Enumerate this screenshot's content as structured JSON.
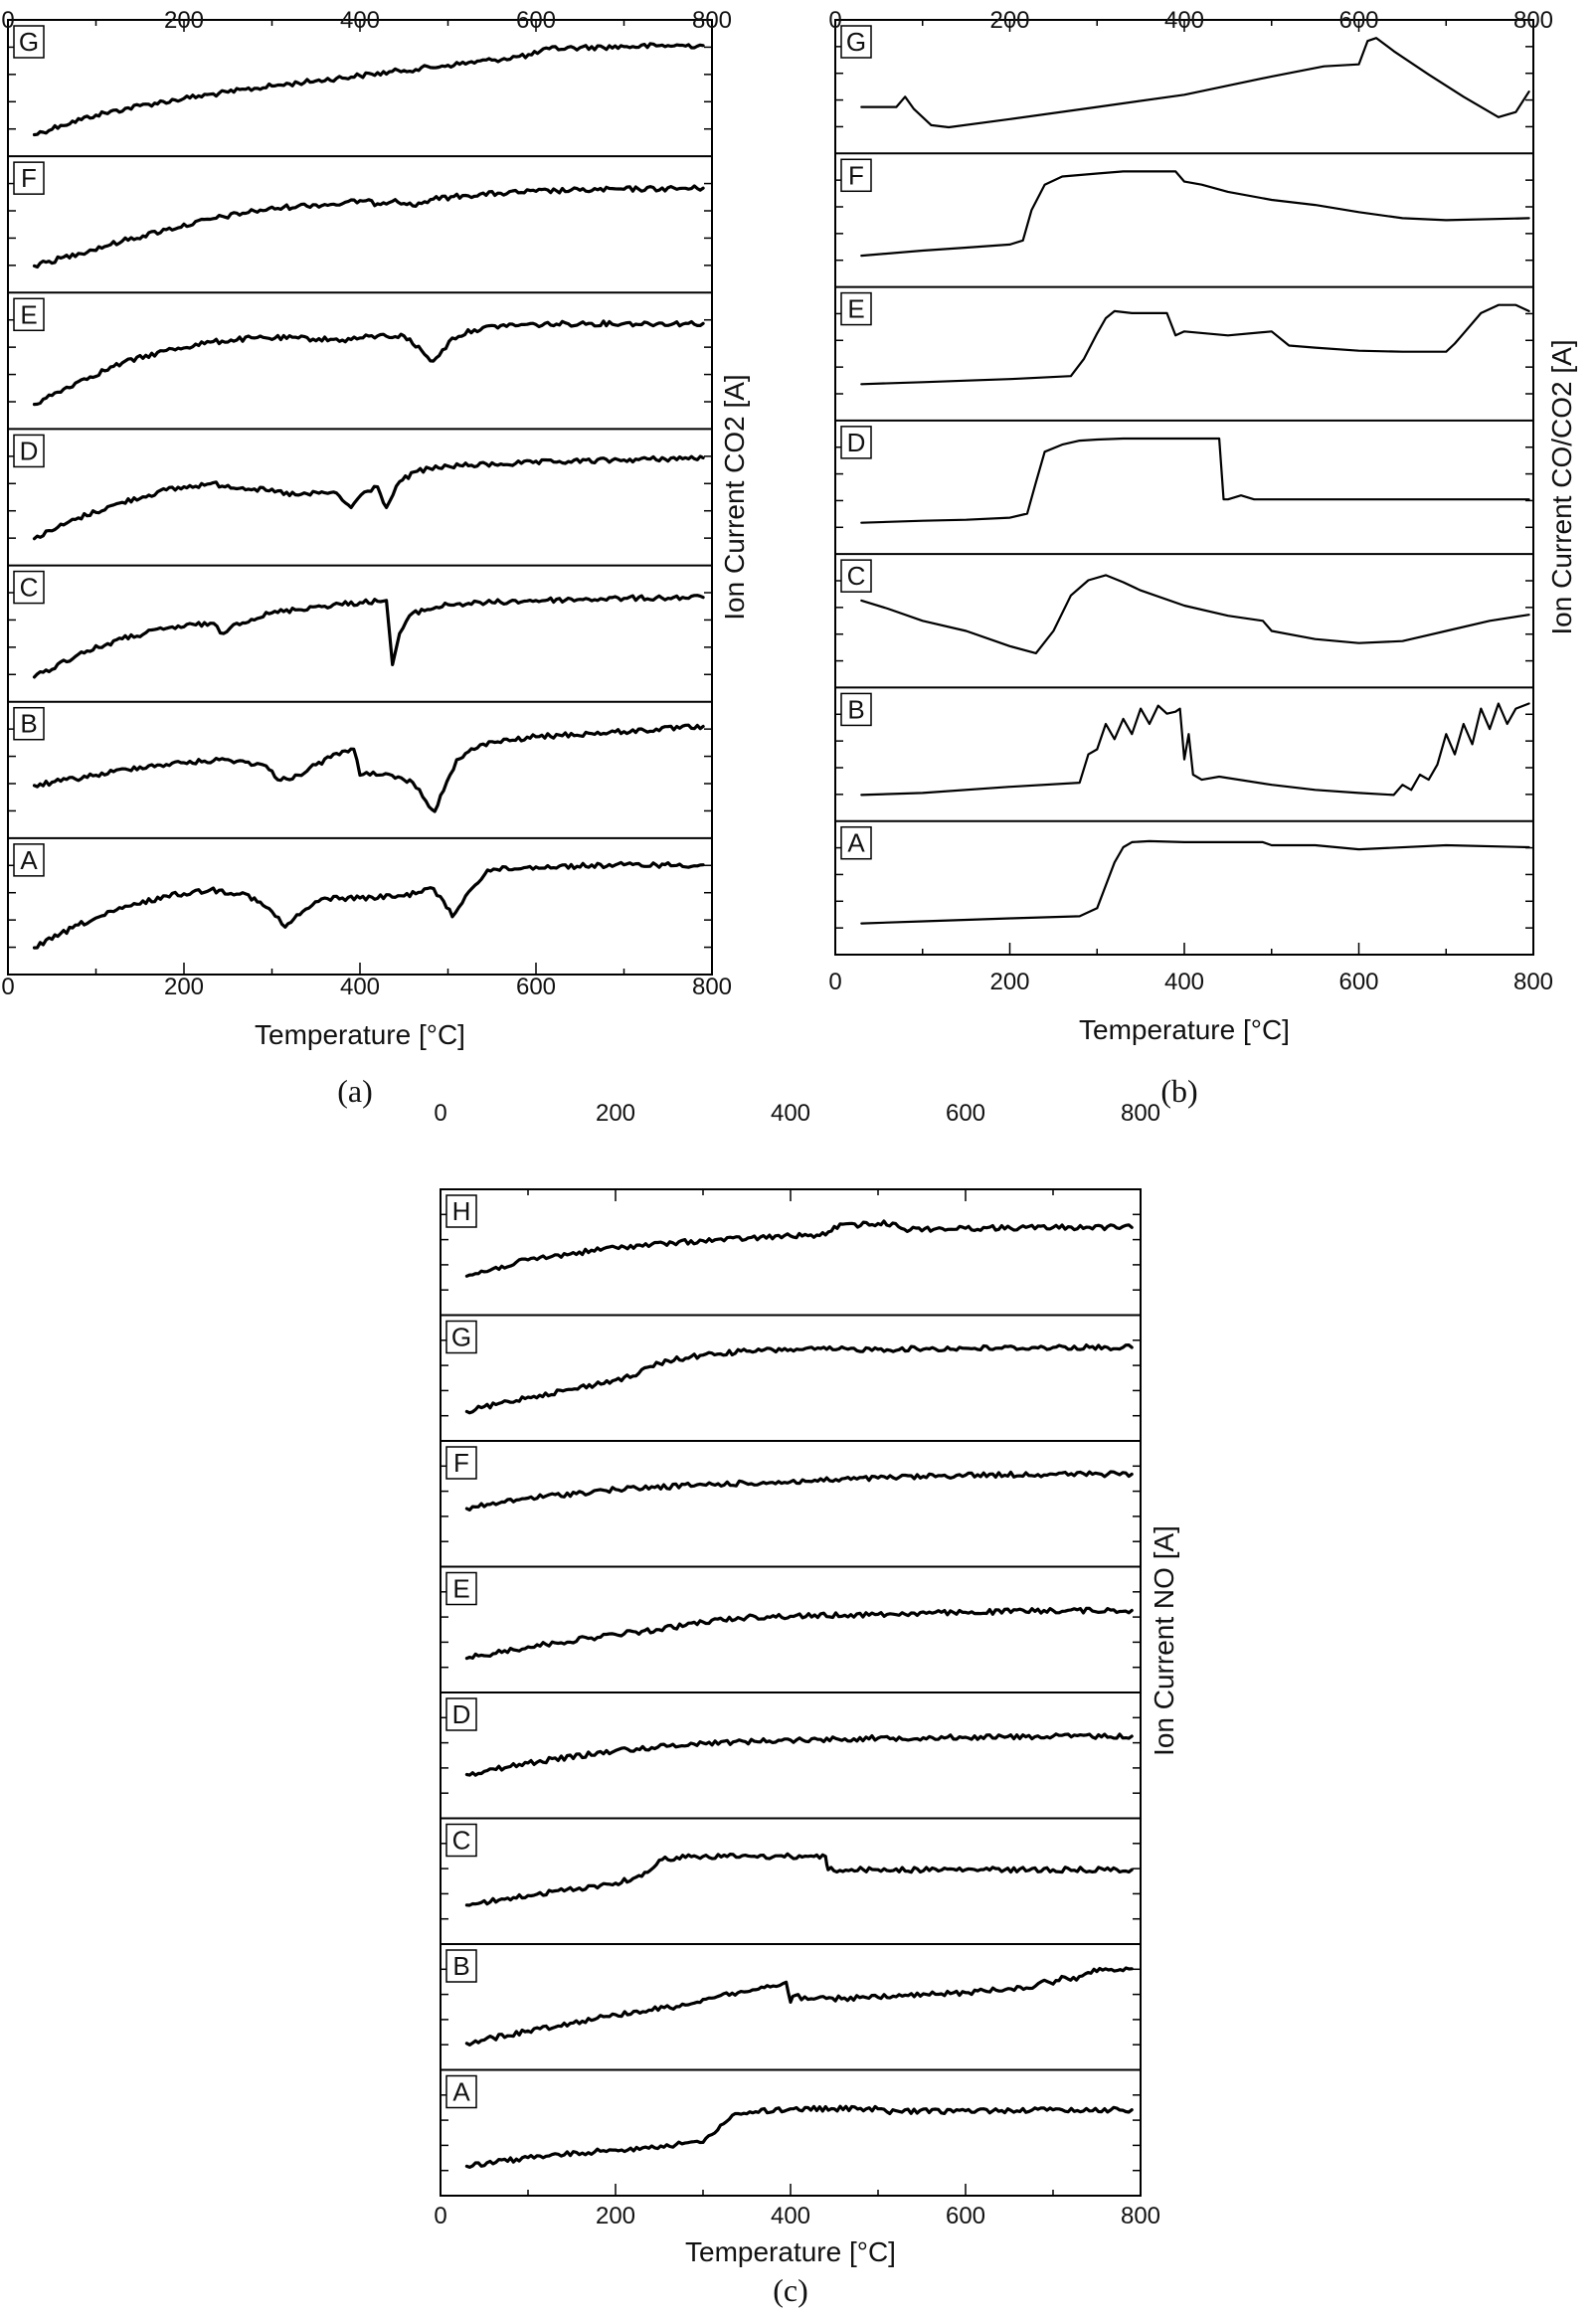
{
  "chart_data": [
    {
      "id": "a",
      "type": "line",
      "caption": "(a)",
      "xlabel": "Temperature [°C]",
      "ylabel": "Ion Current CO2 [A]",
      "xlim": [
        0,
        800
      ],
      "xticks": [
        "0",
        "200",
        "400",
        "600",
        "800"
      ],
      "style": "noisy",
      "series": [
        {
          "name": "G",
          "x": [
            30,
            60,
            100,
            150,
            200,
            250,
            300,
            350,
            400,
            450,
            500,
            550,
            595,
            615,
            650,
            700,
            750,
            790
          ],
          "values": [
            0.05,
            0.14,
            0.24,
            0.33,
            0.4,
            0.46,
            0.52,
            0.57,
            0.62,
            0.67,
            0.72,
            0.77,
            0.82,
            0.88,
            0.89,
            0.9,
            0.91,
            0.91
          ]
        },
        {
          "name": "F",
          "x": [
            30,
            80,
            130,
            180,
            230,
            280,
            330,
            380,
            400,
            420,
            440,
            460,
            480,
            520,
            560,
            600,
            650,
            700,
            790
          ],
          "values": [
            0.1,
            0.22,
            0.34,
            0.45,
            0.55,
            0.63,
            0.68,
            0.7,
            0.73,
            0.7,
            0.74,
            0.68,
            0.74,
            0.78,
            0.8,
            0.82,
            0.83,
            0.84,
            0.85
          ]
        },
        {
          "name": "E",
          "x": [
            30,
            80,
            130,
            180,
            230,
            280,
            330,
            380,
            420,
            450,
            470,
            480,
            490,
            505,
            530,
            560,
            600,
            650,
            700,
            790
          ],
          "values": [
            0.08,
            0.3,
            0.48,
            0.6,
            0.68,
            0.72,
            0.72,
            0.7,
            0.74,
            0.74,
            0.6,
            0.5,
            0.55,
            0.72,
            0.8,
            0.84,
            0.85,
            0.86,
            0.86,
            0.86
          ]
        },
        {
          "name": "D",
          "x": [
            30,
            80,
            130,
            180,
            230,
            280,
            330,
            370,
            390,
            405,
            420,
            430,
            445,
            465,
            500,
            560,
            620,
            700,
            790
          ],
          "values": [
            0.1,
            0.3,
            0.45,
            0.57,
            0.63,
            0.58,
            0.52,
            0.55,
            0.4,
            0.55,
            0.6,
            0.4,
            0.65,
            0.75,
            0.8,
            0.82,
            0.84,
            0.86,
            0.88
          ]
        },
        {
          "name": "C",
          "x": [
            30,
            80,
            130,
            180,
            230,
            245,
            260,
            300,
            350,
            400,
            430,
            437,
            445,
            460,
            500,
            550,
            600,
            650,
            700,
            790
          ],
          "values": [
            0.08,
            0.3,
            0.45,
            0.55,
            0.6,
            0.5,
            0.6,
            0.7,
            0.76,
            0.8,
            0.82,
            0.2,
            0.5,
            0.7,
            0.78,
            0.8,
            0.82,
            0.83,
            0.84,
            0.85
          ]
        },
        {
          "name": "B",
          "x": [
            30,
            100,
            150,
            200,
            250,
            290,
            310,
            330,
            350,
            380,
            393,
            400,
            415,
            440,
            460,
            475,
            485,
            495,
            510,
            540,
            600,
            700,
            790
          ],
          "values": [
            0.35,
            0.45,
            0.53,
            0.57,
            0.6,
            0.55,
            0.4,
            0.45,
            0.55,
            0.68,
            0.7,
            0.45,
            0.48,
            0.42,
            0.38,
            0.2,
            0.1,
            0.3,
            0.6,
            0.75,
            0.82,
            0.87,
            0.92
          ]
        },
        {
          "name": "A",
          "x": [
            30,
            80,
            130,
            180,
            230,
            270,
            300,
            315,
            335,
            360,
            400,
            450,
            480,
            495,
            505,
            520,
            545,
            600,
            700,
            790
          ],
          "values": [
            0.1,
            0.32,
            0.48,
            0.6,
            0.66,
            0.62,
            0.45,
            0.3,
            0.45,
            0.58,
            0.58,
            0.6,
            0.68,
            0.55,
            0.4,
            0.6,
            0.85,
            0.88,
            0.9,
            0.9
          ]
        }
      ]
    },
    {
      "id": "b",
      "type": "line",
      "caption": "(b)",
      "xlabel": "Temperature [°C]",
      "ylabel": "Ion Current CO/CO2 [A]",
      "xlim": [
        0,
        800
      ],
      "xticks": [
        "0",
        "200",
        "400",
        "600",
        "800"
      ],
      "style": "smooth",
      "series": [
        {
          "name": "G",
          "x": [
            30,
            70,
            80,
            90,
            110,
            130,
            200,
            300,
            400,
            500,
            560,
            600,
            610,
            620,
            640,
            680,
            720,
            760,
            780,
            795
          ],
          "values": [
            0.3,
            0.3,
            0.4,
            0.28,
            0.12,
            0.1,
            0.18,
            0.3,
            0.42,
            0.6,
            0.7,
            0.72,
            0.95,
            0.98,
            0.85,
            0.62,
            0.4,
            0.2,
            0.25,
            0.45
          ]
        },
        {
          "name": "F",
          "x": [
            30,
            100,
            150,
            200,
            215,
            225,
            240,
            260,
            300,
            330,
            350,
            390,
            400,
            420,
            450,
            500,
            550,
            600,
            650,
            700,
            795
          ],
          "values": [
            0.15,
            0.2,
            0.23,
            0.26,
            0.3,
            0.6,
            0.85,
            0.93,
            0.96,
            0.98,
            0.98,
            0.98,
            0.88,
            0.85,
            0.78,
            0.7,
            0.65,
            0.58,
            0.52,
            0.5,
            0.52
          ]
        },
        {
          "name": "E",
          "x": [
            30,
            100,
            200,
            270,
            285,
            300,
            310,
            320,
            340,
            380,
            390,
            400,
            450,
            500,
            520,
            550,
            600,
            650,
            700,
            710,
            720,
            740,
            760,
            780,
            795
          ],
          "values": [
            0.2,
            0.22,
            0.25,
            0.28,
            0.45,
            0.7,
            0.85,
            0.92,
            0.9,
            0.9,
            0.68,
            0.72,
            0.68,
            0.72,
            0.58,
            0.56,
            0.53,
            0.52,
            0.52,
            0.6,
            0.7,
            0.9,
            0.98,
            0.98,
            0.92
          ]
        },
        {
          "name": "D",
          "x": [
            30,
            100,
            150,
            200,
            220,
            230,
            240,
            260,
            280,
            300,
            330,
            350,
            400,
            440,
            445,
            450,
            465,
            480,
            500,
            600,
            795
          ],
          "values": [
            0.15,
            0.17,
            0.18,
            0.2,
            0.24,
            0.55,
            0.85,
            0.92,
            0.96,
            0.97,
            0.98,
            0.98,
            0.98,
            0.98,
            0.38,
            0.38,
            0.42,
            0.38,
            0.38,
            0.38,
            0.38
          ]
        },
        {
          "name": "C",
          "x": [
            30,
            60,
            100,
            150,
            200,
            230,
            250,
            270,
            290,
            310,
            330,
            350,
            400,
            450,
            490,
            500,
            550,
            600,
            650,
            700,
            750,
            795
          ],
          "values": [
            0.7,
            0.62,
            0.5,
            0.4,
            0.25,
            0.18,
            0.4,
            0.75,
            0.9,
            0.95,
            0.88,
            0.8,
            0.65,
            0.55,
            0.5,
            0.4,
            0.32,
            0.28,
            0.3,
            0.4,
            0.5,
            0.56
          ]
        },
        {
          "name": "B",
          "x": [
            30,
            100,
            200,
            280,
            290,
            300,
            310,
            320,
            330,
            340,
            350,
            360,
            370,
            380,
            390,
            395,
            400,
            405,
            410,
            420,
            440,
            500,
            550,
            600,
            640,
            650,
            660,
            670,
            680,
            690,
            700,
            710,
            720,
            730,
            740,
            750,
            760,
            770,
            780,
            795
          ],
          "values": [
            0.1,
            0.12,
            0.18,
            0.22,
            0.5,
            0.55,
            0.8,
            0.65,
            0.85,
            0.7,
            0.95,
            0.8,
            0.98,
            0.9,
            0.92,
            0.95,
            0.45,
            0.7,
            0.3,
            0.25,
            0.28,
            0.2,
            0.15,
            0.12,
            0.1,
            0.2,
            0.15,
            0.3,
            0.25,
            0.4,
            0.7,
            0.5,
            0.8,
            0.6,
            0.95,
            0.75,
            1.0,
            0.8,
            0.95,
            1.0
          ]
        },
        {
          "name": "A",
          "x": [
            30,
            100,
            200,
            280,
            300,
            320,
            330,
            340,
            360,
            400,
            490,
            500,
            550,
            600,
            700,
            795
          ],
          "values": [
            0.15,
            0.17,
            0.2,
            0.22,
            0.3,
            0.75,
            0.9,
            0.95,
            0.96,
            0.95,
            0.95,
            0.92,
            0.92,
            0.88,
            0.92,
            0.9
          ]
        }
      ]
    },
    {
      "id": "c",
      "type": "line",
      "caption": "(c)",
      "xlabel": "Temperature [°C]",
      "ylabel": "Ion Current NO [A]",
      "xlim": [
        0,
        800
      ],
      "xticks": [
        "0",
        "200",
        "400",
        "600",
        "800"
      ],
      "style": "noisy",
      "series": [
        {
          "name": "H",
          "x": [
            30,
            100,
            200,
            300,
            400,
            440,
            450,
            500,
            520,
            530,
            600,
            700,
            790
          ],
          "values": [
            0.25,
            0.42,
            0.55,
            0.62,
            0.67,
            0.68,
            0.77,
            0.8,
            0.8,
            0.74,
            0.75,
            0.76,
            0.76
          ]
        },
        {
          "name": "G",
          "x": [
            30,
            100,
            150,
            200,
            220,
            240,
            260,
            300,
            350,
            400,
            500,
            600,
            700,
            790
          ],
          "values": [
            0.15,
            0.3,
            0.38,
            0.48,
            0.52,
            0.62,
            0.68,
            0.74,
            0.78,
            0.8,
            0.8,
            0.81,
            0.82,
            0.82
          ]
        },
        {
          "name": "F",
          "x": [
            30,
            100,
            200,
            300,
            400,
            500,
            600,
            700,
            790
          ],
          "values": [
            0.45,
            0.56,
            0.65,
            0.7,
            0.73,
            0.77,
            0.8,
            0.81,
            0.81
          ]
        },
        {
          "name": "E",
          "x": [
            30,
            100,
            200,
            250,
            300,
            350,
            400,
            500,
            600,
            700,
            790
          ],
          "values": [
            0.2,
            0.32,
            0.45,
            0.5,
            0.58,
            0.63,
            0.64,
            0.66,
            0.68,
            0.7,
            0.7
          ]
        },
        {
          "name": "D",
          "x": [
            30,
            100,
            200,
            300,
            400,
            500,
            600,
            700,
            790
          ],
          "values": [
            0.3,
            0.42,
            0.55,
            0.63,
            0.66,
            0.68,
            0.69,
            0.7,
            0.7
          ]
        },
        {
          "name": "C",
          "x": [
            30,
            100,
            200,
            230,
            250,
            270,
            300,
            400,
            440,
            443,
            500,
            600,
            700,
            790
          ],
          "values": [
            0.25,
            0.35,
            0.48,
            0.55,
            0.72,
            0.75,
            0.76,
            0.76,
            0.76,
            0.62,
            0.62,
            0.62,
            0.62,
            0.62
          ]
        },
        {
          "name": "B",
          "x": [
            30,
            100,
            200,
            280,
            300,
            320,
            340,
            360,
            380,
            395,
            400,
            405,
            420,
            500,
            600,
            680,
            690,
            700,
            710,
            720,
            740,
            760,
            780,
            790
          ],
          "values": [
            0.12,
            0.25,
            0.42,
            0.52,
            0.58,
            0.62,
            0.65,
            0.68,
            0.72,
            0.76,
            0.55,
            0.62,
            0.58,
            0.6,
            0.65,
            0.72,
            0.78,
            0.74,
            0.82,
            0.78,
            0.86,
            0.9,
            0.88,
            0.9
          ]
        },
        {
          "name": "A",
          "x": [
            30,
            100,
            200,
            300,
            320,
            340,
            360,
            400,
            450,
            500,
            510,
            600,
            700,
            790
          ],
          "values": [
            0.15,
            0.24,
            0.32,
            0.4,
            0.58,
            0.7,
            0.72,
            0.75,
            0.75,
            0.75,
            0.72,
            0.73,
            0.74,
            0.74
          ]
        }
      ]
    }
  ]
}
